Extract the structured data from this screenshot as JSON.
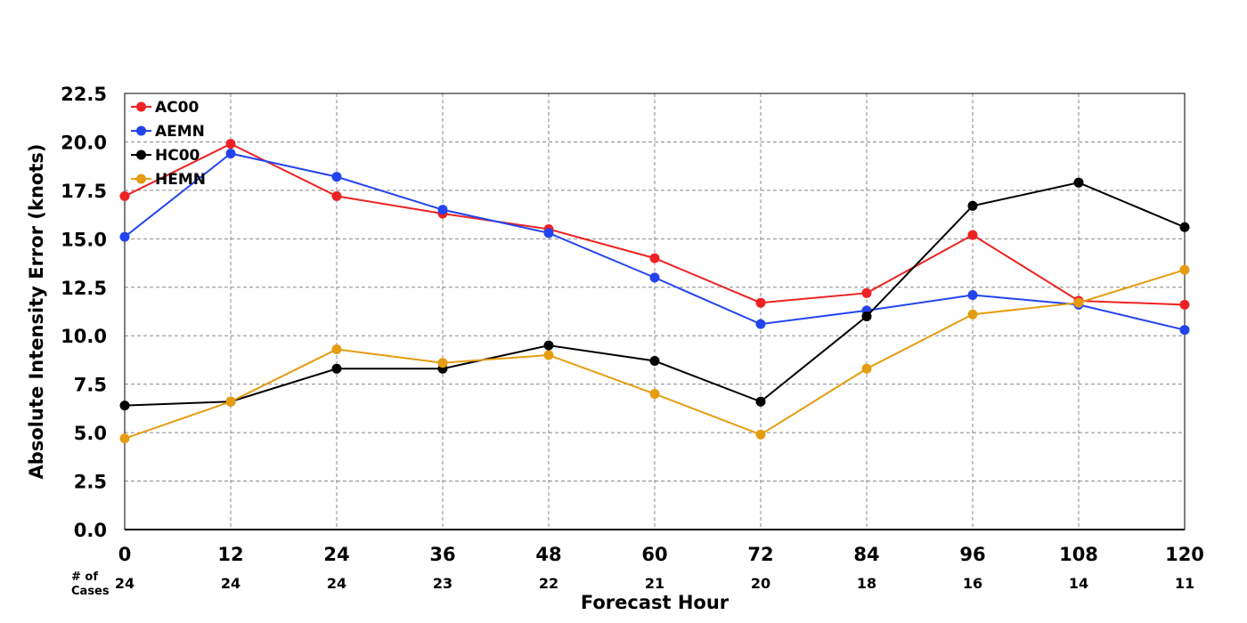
{
  "chart_data": {
    "type": "line",
    "title": "",
    "xlabel": "Forecast Hour",
    "ylabel": "Absolute Intensity Error (knots)",
    "x": [
      0,
      12,
      24,
      36,
      48,
      60,
      72,
      84,
      96,
      108,
      120
    ],
    "xlim": [
      0,
      120
    ],
    "ylim": [
      0,
      22.5
    ],
    "yticks": [
      "0.0",
      "2.5",
      "5.0",
      "7.5",
      "10.0",
      "12.5",
      "15.0",
      "17.5",
      "20.0",
      "22.5"
    ],
    "xticks": [
      "0",
      "12",
      "24",
      "36",
      "48",
      "60",
      "72",
      "84",
      "96",
      "108",
      "120"
    ],
    "grid": true,
    "legend_position": "top-left",
    "cases_label_line1": "# of",
    "cases_label_line2": "Cases",
    "cases": [
      "24",
      "24",
      "24",
      "23",
      "22",
      "21",
      "20",
      "18",
      "16",
      "14",
      "11"
    ],
    "series": [
      {
        "name": "AC00",
        "color": "#ee2222",
        "values": [
          17.2,
          19.9,
          17.2,
          16.3,
          15.5,
          14.0,
          11.7,
          12.2,
          15.2,
          11.8,
          11.6
        ]
      },
      {
        "name": "AEMN",
        "color": "#2244ee",
        "values": [
          15.1,
          19.4,
          18.2,
          16.5,
          15.3,
          13.0,
          10.6,
          11.3,
          12.1,
          11.6,
          10.3
        ]
      },
      {
        "name": "HC00",
        "color": "#000000",
        "values": [
          6.4,
          6.6,
          8.3,
          8.3,
          9.5,
          8.7,
          6.6,
          11.0,
          16.7,
          17.9,
          15.6
        ]
      },
      {
        "name": "HEMN",
        "color": "#e59c10",
        "values": [
          4.7,
          6.6,
          9.3,
          8.6,
          9.0,
          7.0,
          4.9,
          8.3,
          11.1,
          11.7,
          13.4
        ]
      }
    ]
  }
}
